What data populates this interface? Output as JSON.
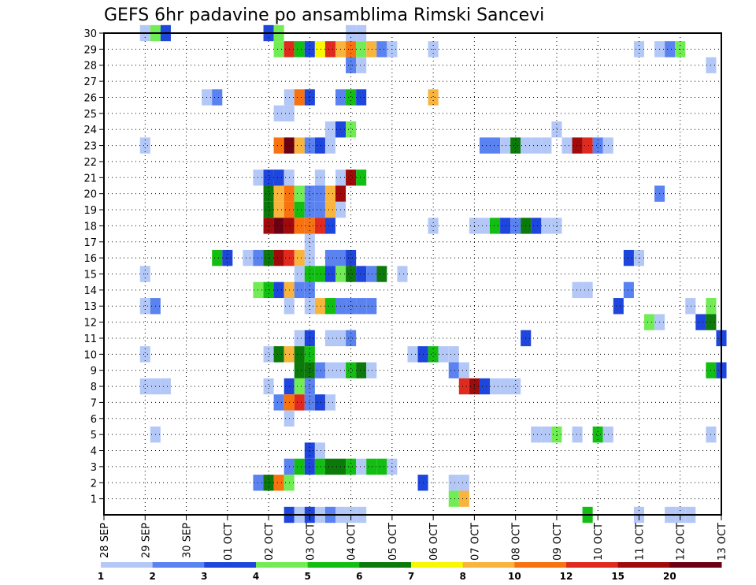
{
  "chart_data": {
    "type": "heatmap",
    "title": "GEFS 6hr padavine po ansamblima Rimski Sancevi",
    "xlabel": "",
    "ylabel": "",
    "x_tick_labels": [
      "28 SEP",
      "29 SEP",
      "30 SEP",
      "01 OCT",
      "02 OCT",
      "03 OCT",
      "04 OCT",
      "05 OCT",
      "06 OCT",
      "07 OCT",
      "08 OCT",
      "09 OCT",
      "10 OCT",
      "11 OCT",
      "12 OCT",
      "13 OCT"
    ],
    "y_tick_labels": [
      "1",
      "2",
      "3",
      "4",
      "5",
      "6",
      "7",
      "8",
      "9",
      "10",
      "11",
      "12",
      "13",
      "14",
      "15",
      "16",
      "17",
      "18",
      "19",
      "20",
      "21",
      "22",
      "23",
      "24",
      "25",
      "26",
      "27",
      "28",
      "29",
      "30"
    ],
    "y_range": [
      0,
      30
    ],
    "x_range_steps": [
      0,
      60
    ],
    "steps_per_day": 4,
    "grid": true,
    "legend": {
      "position": "bottom",
      "labels": [
        "1",
        "2",
        "3",
        "4",
        "5",
        "6",
        "7",
        "8",
        "10",
        "12",
        "15",
        "20"
      ],
      "colors": [
        "#b4c8f8",
        "#5a82f0",
        "#1e46dc",
        "#72ec54",
        "#12be12",
        "#0b7a0b",
        "#f8f800",
        "#f8b43c",
        "#f87210",
        "#e02a1e",
        "#a00a0a",
        "#6a0012"
      ]
    },
    "value_levels": [
      1,
      2,
      3,
      4,
      5,
      6,
      7,
      8,
      10,
      12,
      15,
      20
    ],
    "cells_note": "each cell: [member, time_step_index (6h steps from 28 SEP 00z), precipitation_mm]",
    "cells": [
      [
        30,
        4,
        1
      ],
      [
        30,
        5,
        4
      ],
      [
        30,
        6,
        3
      ],
      [
        30,
        16,
        3
      ],
      [
        30,
        17,
        4
      ],
      [
        30,
        24,
        1
      ],
      [
        30,
        25,
        1
      ],
      [
        29,
        17,
        4
      ],
      [
        29,
        18,
        12
      ],
      [
        29,
        19,
        5
      ],
      [
        29,
        20,
        3
      ],
      [
        29,
        21,
        7
      ],
      [
        29,
        22,
        12
      ],
      [
        29,
        23,
        8
      ],
      [
        29,
        24,
        10
      ],
      [
        29,
        25,
        4
      ],
      [
        29,
        26,
        8
      ],
      [
        29,
        27,
        2
      ],
      [
        29,
        28,
        1
      ],
      [
        29,
        32,
        1
      ],
      [
        29,
        52,
        1
      ],
      [
        29,
        54,
        1
      ],
      [
        29,
        55,
        2
      ],
      [
        29,
        56,
        4
      ],
      [
        28,
        24,
        2
      ],
      [
        28,
        25,
        1
      ],
      [
        28,
        59,
        1
      ],
      [
        26,
        10,
        1
      ],
      [
        26,
        11,
        2
      ],
      [
        26,
        18,
        1
      ],
      [
        26,
        19,
        10
      ],
      [
        26,
        20,
        3
      ],
      [
        26,
        23,
        2
      ],
      [
        26,
        24,
        5
      ],
      [
        26,
        25,
        3
      ],
      [
        26,
        32,
        8
      ],
      [
        25,
        17,
        1
      ],
      [
        25,
        18,
        1
      ],
      [
        24,
        22,
        1
      ],
      [
        24,
        23,
        3
      ],
      [
        24,
        24,
        4
      ],
      [
        24,
        44,
        1
      ],
      [
        23,
        4,
        1
      ],
      [
        23,
        17,
        10
      ],
      [
        23,
        18,
        20
      ],
      [
        23,
        19,
        8
      ],
      [
        23,
        20,
        2
      ],
      [
        23,
        21,
        3
      ],
      [
        23,
        22,
        1
      ],
      [
        23,
        37,
        2
      ],
      [
        23,
        38,
        2
      ],
      [
        23,
        39,
        1
      ],
      [
        23,
        40,
        6
      ],
      [
        23,
        41,
        1
      ],
      [
        23,
        42,
        1
      ],
      [
        23,
        43,
        1
      ],
      [
        23,
        45,
        1
      ],
      [
        23,
        46,
        15
      ],
      [
        23,
        47,
        12
      ],
      [
        23,
        48,
        2
      ],
      [
        23,
        49,
        1
      ],
      [
        21,
        15,
        1
      ],
      [
        21,
        16,
        3
      ],
      [
        21,
        17,
        3
      ],
      [
        21,
        18,
        1
      ],
      [
        21,
        21,
        1
      ],
      [
        21,
        23,
        1
      ],
      [
        21,
        24,
        15
      ],
      [
        21,
        25,
        5
      ],
      [
        20,
        16,
        6
      ],
      [
        20,
        17,
        8
      ],
      [
        20,
        18,
        10
      ],
      [
        20,
        19,
        4
      ],
      [
        20,
        20,
        2
      ],
      [
        20,
        21,
        2
      ],
      [
        20,
        22,
        8
      ],
      [
        20,
        23,
        15
      ],
      [
        20,
        54,
        2
      ],
      [
        19,
        16,
        6
      ],
      [
        19,
        17,
        8
      ],
      [
        19,
        18,
        10
      ],
      [
        19,
        19,
        5
      ],
      [
        19,
        20,
        2
      ],
      [
        19,
        21,
        2
      ],
      [
        19,
        22,
        8
      ],
      [
        19,
        23,
        1
      ],
      [
        18,
        16,
        15
      ],
      [
        18,
        17,
        20
      ],
      [
        18,
        18,
        15
      ],
      [
        18,
        19,
        10
      ],
      [
        18,
        20,
        10
      ],
      [
        18,
        21,
        12
      ],
      [
        18,
        22,
        3
      ],
      [
        18,
        32,
        1
      ],
      [
        18,
        36,
        1
      ],
      [
        18,
        37,
        1
      ],
      [
        18,
        38,
        5
      ],
      [
        18,
        39,
        3
      ],
      [
        18,
        40,
        2
      ],
      [
        18,
        41,
        6
      ],
      [
        18,
        42,
        3
      ],
      [
        18,
        43,
        1
      ],
      [
        18,
        44,
        1
      ],
      [
        17,
        20,
        1
      ],
      [
        16,
        11,
        5
      ],
      [
        16,
        12,
        3
      ],
      [
        16,
        14,
        1
      ],
      [
        16,
        15,
        2
      ],
      [
        16,
        16,
        6
      ],
      [
        16,
        17,
        15
      ],
      [
        16,
        18,
        12
      ],
      [
        16,
        19,
        8
      ],
      [
        16,
        20,
        1
      ],
      [
        16,
        22,
        2
      ],
      [
        16,
        23,
        2
      ],
      [
        16,
        24,
        3
      ],
      [
        16,
        51,
        3
      ],
      [
        16,
        52,
        1
      ],
      [
        15,
        4,
        1
      ],
      [
        15,
        19,
        1
      ],
      [
        15,
        20,
        5
      ],
      [
        15,
        21,
        5
      ],
      [
        15,
        22,
        3
      ],
      [
        15,
        23,
        4
      ],
      [
        15,
        24,
        6
      ],
      [
        15,
        25,
        3
      ],
      [
        15,
        26,
        2
      ],
      [
        15,
        27,
        6
      ],
      [
        15,
        29,
        1
      ],
      [
        14,
        15,
        4
      ],
      [
        14,
        16,
        5
      ],
      [
        14,
        17,
        3
      ],
      [
        14,
        18,
        8
      ],
      [
        14,
        19,
        2
      ],
      [
        14,
        20,
        2
      ],
      [
        14,
        46,
        1
      ],
      [
        14,
        47,
        1
      ],
      [
        14,
        51,
        2
      ],
      [
        13,
        4,
        1
      ],
      [
        13,
        5,
        2
      ],
      [
        13,
        18,
        1
      ],
      [
        13,
        20,
        1
      ],
      [
        13,
        21,
        8
      ],
      [
        13,
        22,
        5
      ],
      [
        13,
        23,
        2
      ],
      [
        13,
        24,
        2
      ],
      [
        13,
        25,
        2
      ],
      [
        13,
        26,
        2
      ],
      [
        13,
        50,
        3
      ],
      [
        13,
        57,
        1
      ],
      [
        13,
        59,
        4
      ],
      [
        12,
        53,
        4
      ],
      [
        12,
        54,
        1
      ],
      [
        12,
        58,
        3
      ],
      [
        12,
        59,
        6
      ],
      [
        11,
        19,
        1
      ],
      [
        11,
        20,
        3
      ],
      [
        11,
        22,
        1
      ],
      [
        11,
        23,
        1
      ],
      [
        11,
        24,
        2
      ],
      [
        11,
        41,
        3
      ],
      [
        11,
        60,
        3
      ],
      [
        10,
        4,
        1
      ],
      [
        10,
        16,
        1
      ],
      [
        10,
        17,
        6
      ],
      [
        10,
        18,
        8
      ],
      [
        10,
        19,
        6
      ],
      [
        10,
        20,
        5
      ],
      [
        10,
        30,
        1
      ],
      [
        10,
        31,
        3
      ],
      [
        10,
        32,
        5
      ],
      [
        10,
        33,
        1
      ],
      [
        10,
        34,
        1
      ],
      [
        9,
        19,
        6
      ],
      [
        9,
        20,
        6
      ],
      [
        9,
        21,
        2
      ],
      [
        9,
        22,
        1
      ],
      [
        9,
        23,
        1
      ],
      [
        9,
        24,
        5
      ],
      [
        9,
        25,
        6
      ],
      [
        9,
        26,
        1
      ],
      [
        9,
        34,
        2
      ],
      [
        9,
        35,
        1
      ],
      [
        9,
        59,
        5
      ],
      [
        9,
        60,
        3
      ],
      [
        8,
        4,
        1
      ],
      [
        8,
        5,
        1
      ],
      [
        8,
        6,
        1
      ],
      [
        8,
        16,
        1
      ],
      [
        8,
        18,
        3
      ],
      [
        8,
        19,
        4
      ],
      [
        8,
        20,
        2
      ],
      [
        8,
        35,
        12
      ],
      [
        8,
        36,
        15
      ],
      [
        8,
        37,
        3
      ],
      [
        8,
        38,
        1
      ],
      [
        8,
        39,
        1
      ],
      [
        8,
        40,
        1
      ],
      [
        7,
        17,
        2
      ],
      [
        7,
        18,
        10
      ],
      [
        7,
        19,
        12
      ],
      [
        7,
        20,
        2
      ],
      [
        7,
        21,
        3
      ],
      [
        7,
        22,
        1
      ],
      [
        6,
        18,
        1
      ],
      [
        5,
        5,
        1
      ],
      [
        5,
        42,
        1
      ],
      [
        5,
        43,
        1
      ],
      [
        5,
        44,
        4
      ],
      [
        5,
        46,
        1
      ],
      [
        5,
        48,
        5
      ],
      [
        5,
        49,
        1
      ],
      [
        5,
        59,
        1
      ],
      [
        4,
        20,
        3
      ],
      [
        4,
        21,
        1
      ],
      [
        3,
        18,
        2
      ],
      [
        3,
        19,
        5
      ],
      [
        3,
        20,
        3
      ],
      [
        3,
        21,
        5
      ],
      [
        3,
        22,
        6
      ],
      [
        3,
        23,
        6
      ],
      [
        3,
        24,
        5
      ],
      [
        3,
        25,
        1
      ],
      [
        3,
        26,
        5
      ],
      [
        3,
        27,
        5
      ],
      [
        3,
        28,
        1
      ],
      [
        2,
        15,
        2
      ],
      [
        2,
        16,
        6
      ],
      [
        2,
        17,
        10
      ],
      [
        2,
        18,
        4
      ],
      [
        2,
        31,
        3
      ],
      [
        2,
        34,
        1
      ],
      [
        2,
        35,
        1
      ],
      [
        1,
        34,
        4
      ],
      [
        1,
        35,
        8
      ],
      [
        0,
        18,
        3
      ],
      [
        0,
        19,
        1
      ],
      [
        0,
        20,
        3
      ],
      [
        0,
        21,
        1
      ],
      [
        0,
        22,
        2
      ],
      [
        0,
        23,
        1
      ],
      [
        0,
        24,
        1
      ],
      [
        0,
        25,
        1
      ],
      [
        0,
        47,
        5
      ],
      [
        0,
        52,
        1
      ],
      [
        0,
        55,
        1
      ],
      [
        0,
        56,
        1
      ],
      [
        0,
        57,
        1
      ]
    ]
  }
}
